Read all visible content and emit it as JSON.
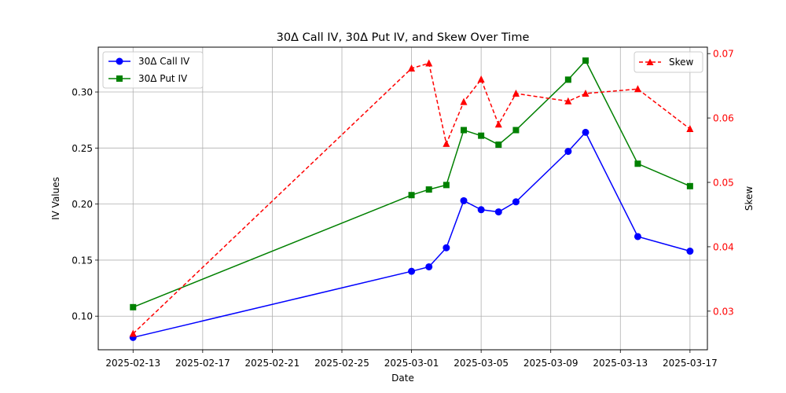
{
  "chart_data": {
    "type": "line",
    "title": "30Δ Call IV, 30Δ Put IV, and Skew Over Time",
    "xlabel": "Date",
    "ylabel": "IV Values",
    "y2label": "Skew",
    "x_tick_labels": [
      "2025-02-13",
      "2025-02-17",
      "2025-02-21",
      "2025-02-25",
      "2025-03-01",
      "2025-03-05",
      "2025-03-09",
      "2025-03-13",
      "2025-03-17"
    ],
    "y_tick_labels": [
      "0.10",
      "0.15",
      "0.20",
      "0.25",
      "0.30"
    ],
    "y2_tick_labels": [
      "0.03",
      "0.04",
      "0.05",
      "0.06",
      "0.07"
    ],
    "dates": [
      "2025-02-13",
      "2025-03-01",
      "2025-03-02",
      "2025-03-03",
      "2025-03-04",
      "2025-03-05",
      "2025-03-06",
      "2025-03-07",
      "2025-03-10",
      "2025-03-11",
      "2025-03-14",
      "2025-03-17"
    ],
    "xlim": [
      "2025-02-11",
      "2025-03-18"
    ],
    "ylim": [
      0.07,
      0.34
    ],
    "y2lim": [
      0.024,
      0.071
    ],
    "grid": true,
    "series": [
      {
        "name": "30Δ Call IV",
        "axis": "left",
        "color": "#0000ff",
        "marker": "circle",
        "linestyle": "solid",
        "values": [
          0.081,
          0.14,
          0.144,
          0.161,
          0.203,
          0.195,
          0.193,
          0.202,
          0.247,
          0.264,
          0.171,
          0.158
        ]
      },
      {
        "name": "30Δ Put IV",
        "axis": "left",
        "color": "#008000",
        "marker": "square",
        "linestyle": "solid",
        "values": [
          0.108,
          0.208,
          0.213,
          0.217,
          0.266,
          0.261,
          0.253,
          0.266,
          0.311,
          0.328,
          0.236,
          0.216
        ]
      },
      {
        "name": "Skew",
        "axis": "right",
        "color": "#ff0000",
        "marker": "triangle",
        "linestyle": "dashed",
        "values": [
          0.0265,
          0.0677,
          0.0685,
          0.056,
          0.0625,
          0.066,
          0.059,
          0.0638,
          0.0626,
          0.0638,
          0.0645,
          0.0583
        ]
      }
    ],
    "legend_left": {
      "placement": "upper-left",
      "entries": [
        "30Δ Call IV",
        "30Δ Put IV"
      ]
    },
    "legend_right": {
      "placement": "upper-right",
      "entries": [
        "Skew"
      ]
    },
    "colors": {
      "axis_right": "#ff0000",
      "grid": "#b0b0b0"
    }
  }
}
